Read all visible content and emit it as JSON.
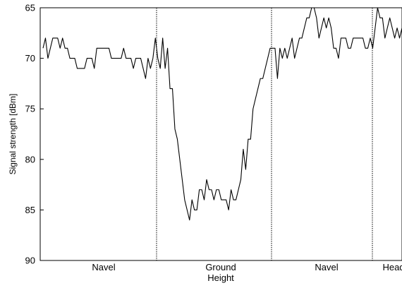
{
  "chart_data": {
    "type": "line",
    "ylabel": "Signal strength [dBm]",
    "ylim": [
      65,
      90
    ],
    "y_inverted": true,
    "y_ticks": [
      65,
      70,
      75,
      80,
      85,
      90
    ],
    "grid": false,
    "region_labels": [
      "Navel",
      "Ground\nHeight",
      "Navel",
      "Head"
    ],
    "series": [
      {
        "values": [
          69,
          68,
          70,
          69,
          68,
          68,
          68,
          69,
          68,
          69,
          69,
          70,
          70,
          70,
          71,
          71,
          71,
          71,
          70,
          70,
          70,
          71,
          69,
          69,
          69,
          69,
          69,
          69,
          70,
          70,
          70,
          70,
          70,
          69,
          70,
          70,
          70,
          71,
          70,
          70,
          70,
          71,
          72,
          70,
          71,
          70,
          68,
          70,
          71,
          68,
          71,
          69,
          73,
          73,
          77,
          78,
          80,
          82,
          84,
          85,
          86,
          84,
          85,
          85,
          83,
          83,
          84,
          82,
          83,
          83,
          84,
          83,
          83,
          84,
          84,
          84,
          85,
          83,
          84,
          84,
          83,
          82,
          79,
          81,
          78,
          78,
          75,
          74,
          73,
          72,
          72,
          71,
          70,
          69,
          69,
          69,
          72,
          69,
          70,
          69,
          70,
          69,
          68,
          70,
          69,
          68,
          68,
          67,
          66,
          66,
          65,
          65,
          66,
          68,
          67,
          66,
          67,
          66,
          67,
          69,
          69,
          70,
          68,
          68,
          68,
          69,
          69,
          68,
          68,
          68,
          68,
          68,
          69,
          69,
          68,
          69,
          67,
          65,
          66,
          66,
          68,
          67,
          66,
          67,
          68,
          67,
          68,
          67
        ]
      }
    ]
  }
}
